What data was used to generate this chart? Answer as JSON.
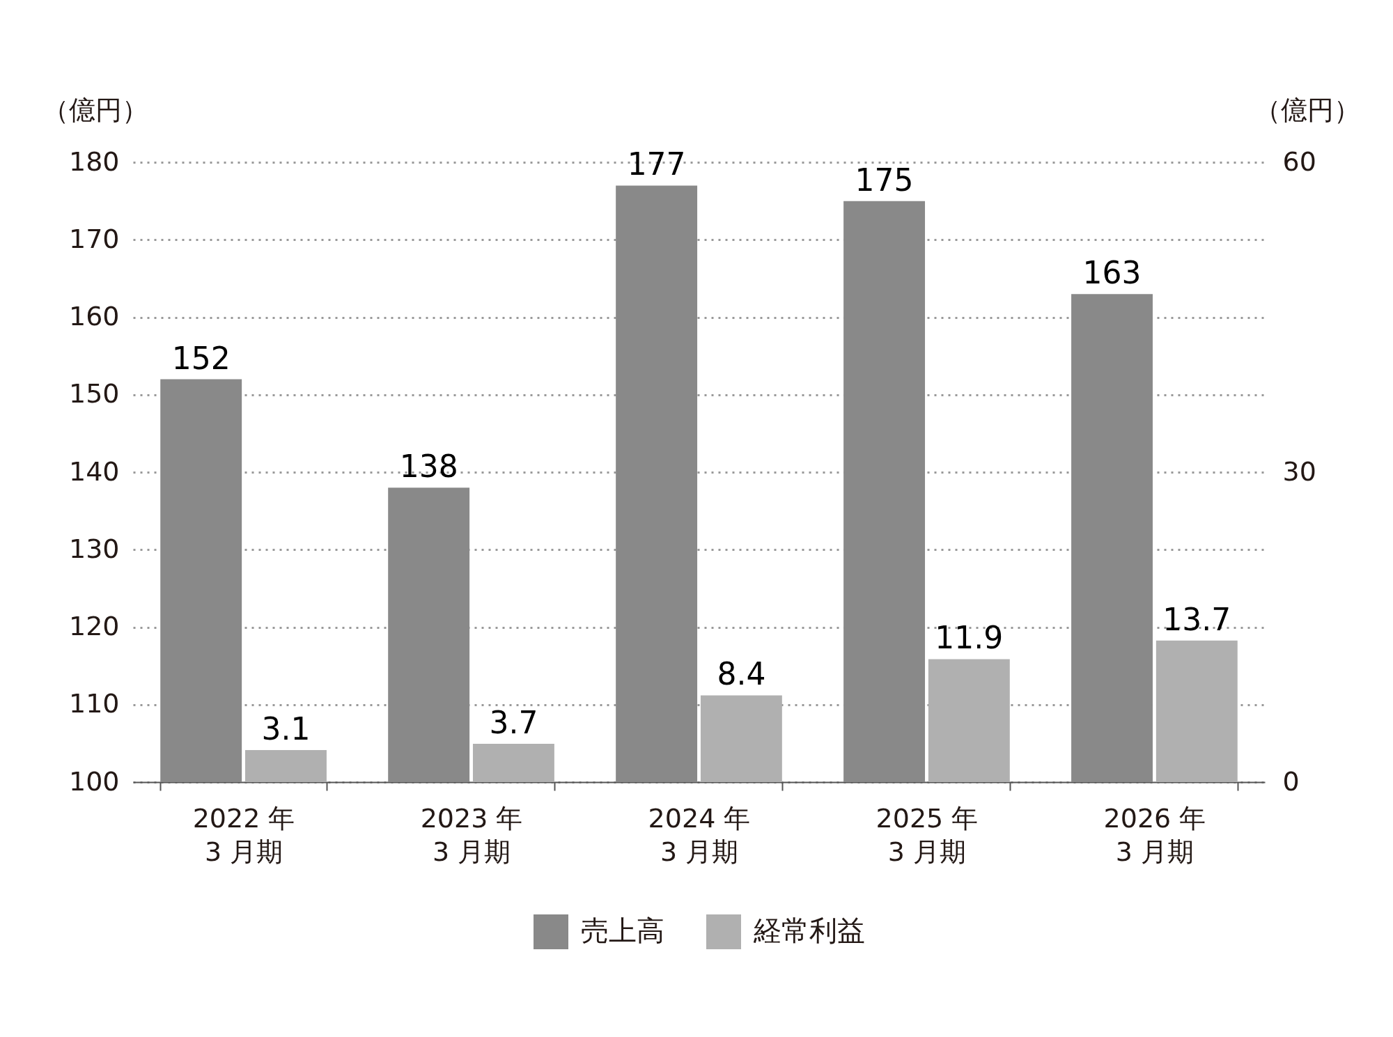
{
  "chart_data": {
    "type": "bar",
    "categories": [
      "2022 年\n3 月期",
      "2023 年\n3 月期",
      "2024 年\n3 月期",
      "2025 年\n3 月期",
      "2026 年\n3 月期"
    ],
    "series": [
      {
        "name": "売上高",
        "color": "#898989",
        "values": [
          152,
          138,
          177,
          175,
          163
        ]
      },
      {
        "name": "経常利益",
        "color": "#b0b0b0",
        "values": [
          3.1,
          3.7,
          8.4,
          11.9,
          13.7
        ],
        "axis": "y2"
      }
    ],
    "ylabel": "（億円）",
    "y2label": "（億円）",
    "ylim": [
      100,
      180
    ],
    "yticks": [
      100,
      110,
      120,
      130,
      140,
      150,
      160,
      170,
      180
    ],
    "y2lim": [
      0,
      60
    ],
    "y2ticks": [
      0,
      30,
      60
    ],
    "data_labels": true,
    "grid": "y",
    "legend": "bottom"
  }
}
